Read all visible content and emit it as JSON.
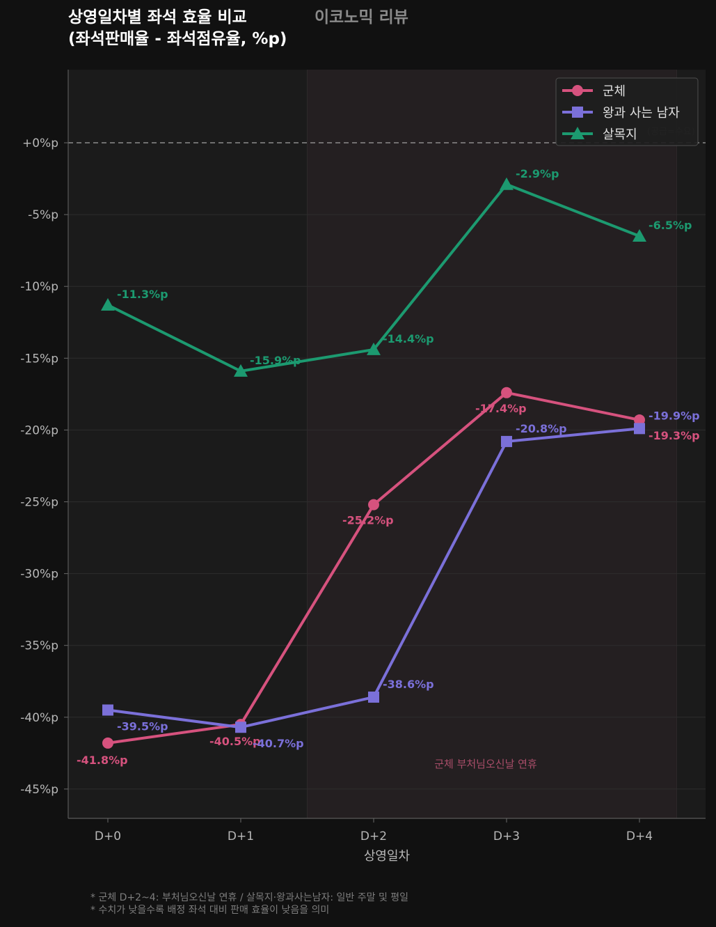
{
  "header": {
    "title_line1": "상영일차별 좌석 효율 비교",
    "title_line2": "(좌석판매율 - 좌석점유율, %p)",
    "brand": "이코노믹 리뷰"
  },
  "chart_data": {
    "type": "line",
    "title": "상영일차별 좌석 효율 비교 (좌석판매율 - 좌석점유율, %p)",
    "xlabel": "상영일차",
    "ylabel": "",
    "categories": [
      "D+0",
      "D+1",
      "D+2",
      "D+3",
      "D+4"
    ],
    "ylim": [
      -47,
      5
    ],
    "yticks": [
      0,
      -5,
      -10,
      -15,
      -20,
      -25,
      -30,
      -35,
      -40,
      -45
    ],
    "ytick_labels": [
      "+0%p",
      "-5%p",
      "-10%p",
      "-15%p",
      "-20%p",
      "-25%p",
      "-30%p",
      "-35%p",
      "-40%p",
      "-45%p"
    ],
    "grid": true,
    "legend_position": "top-right",
    "baseline_note": "(공급=수요)",
    "highlight": {
      "from": "D+1.5",
      "to": "D+4.3",
      "label": "군체 부처님오신날 연휴"
    },
    "series": [
      {
        "name": "군체",
        "color": "#d6527e",
        "marker": "circle",
        "values": [
          -41.8,
          -40.5,
          -25.2,
          -17.4,
          -19.3
        ],
        "labels": [
          "-41.8%p",
          "-40.5%p",
          "-25.2%p",
          "-17.4%p",
          "-19.3%p"
        ]
      },
      {
        "name": "왕과 사는 남자",
        "color": "#7b70d9",
        "marker": "square",
        "values": [
          -39.5,
          -40.7,
          -38.6,
          -20.8,
          -19.9
        ],
        "labels": [
          "-39.5%p",
          "-40.7%p",
          "-38.6%p",
          "-20.8%p",
          "-19.9%p"
        ]
      },
      {
        "name": "살목지",
        "color": "#1c9a70",
        "marker": "triangle",
        "values": [
          -11.3,
          -15.9,
          -14.4,
          -2.9,
          -6.5
        ],
        "labels": [
          "-11.3%p",
          "-15.9%p",
          "-14.4%p",
          "-2.9%p",
          "-6.5%p"
        ]
      }
    ]
  },
  "footnotes": [
    "* 군체 D+2~4: 부처님오신날 연휴 / 살목지·왕과사는남자: 일반 주말 및 평일",
    "* 수치가 낮을수록 배정 좌석 대비 판매 효율이 낮음을 의미"
  ]
}
